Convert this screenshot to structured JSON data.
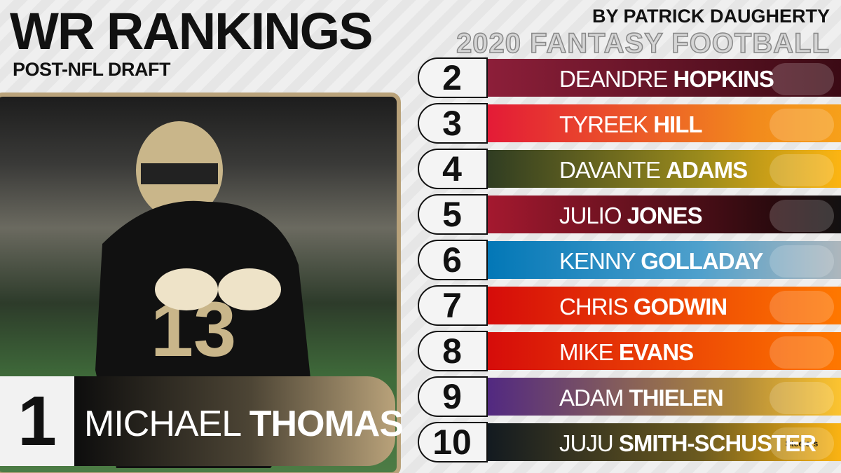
{
  "header": {
    "title": "WR RANKINGS",
    "subtitle": "POST-NFL DRAFT",
    "byline": "BY PATRICK DAUGHERTY",
    "tagline": "2020 FANTASY FOOTBALL"
  },
  "featured": {
    "rank": 1,
    "first": "MICHAEL",
    "last": "THOMAS"
  },
  "rankings": [
    {
      "rank": 2,
      "first": "DEANDRE",
      "last": "HOPKINS"
    },
    {
      "rank": 3,
      "first": "TYREEK",
      "last": "HILL"
    },
    {
      "rank": 4,
      "first": "DAVANTE",
      "last": "ADAMS"
    },
    {
      "rank": 5,
      "first": "JULIO",
      "last": "JONES"
    },
    {
      "rank": 6,
      "first": "KENNY",
      "last": "GOLLADAY"
    },
    {
      "rank": 7,
      "first": "CHRIS",
      "last": "GODWIN"
    },
    {
      "rank": 8,
      "first": "MIKE",
      "last": "EVANS"
    },
    {
      "rank": 9,
      "first": "ADAM",
      "last": "THIELEN"
    },
    {
      "rank": 10,
      "first": "JUJU",
      "last": "SMITH-SCHUSTER",
      "logo_label": "Steelers"
    }
  ]
}
